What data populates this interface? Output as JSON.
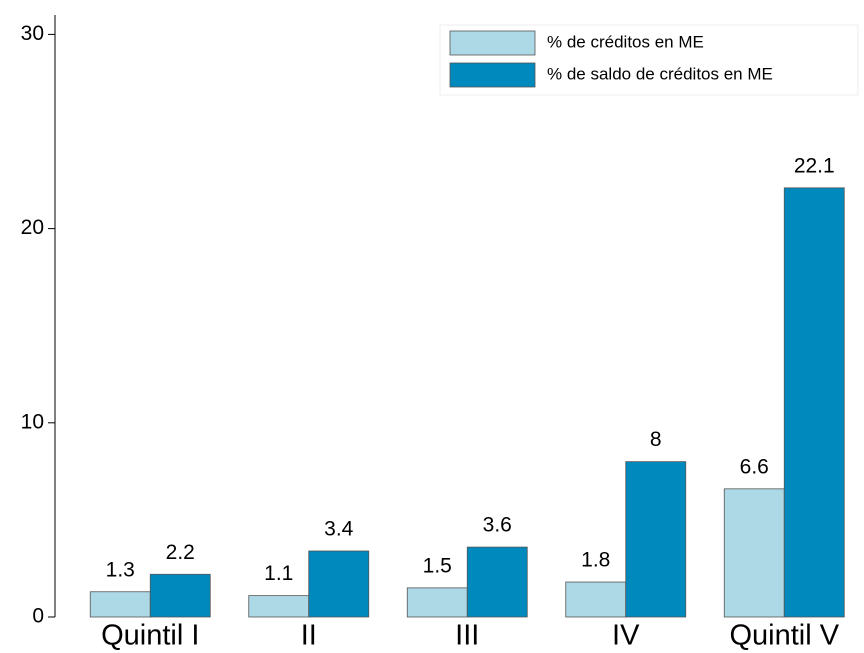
{
  "chart_data": {
    "type": "bar",
    "categories": [
      "Quintil I",
      "II",
      "III",
      "IV",
      "Quintil V"
    ],
    "series": [
      {
        "name": "% de créditos en ME",
        "color": "#add8e6",
        "values": [
          1.3,
          1.1,
          1.5,
          1.8,
          6.6
        ]
      },
      {
        "name": "% de saldo de créditos en ME",
        "color": "#0089bd",
        "values": [
          2.2,
          3.4,
          3.6,
          8,
          22.1
        ]
      }
    ],
    "ylim": [
      0,
      31
    ],
    "yticks": [
      0,
      10,
      20,
      30
    ],
    "grid": false,
    "legend": "upper right"
  }
}
